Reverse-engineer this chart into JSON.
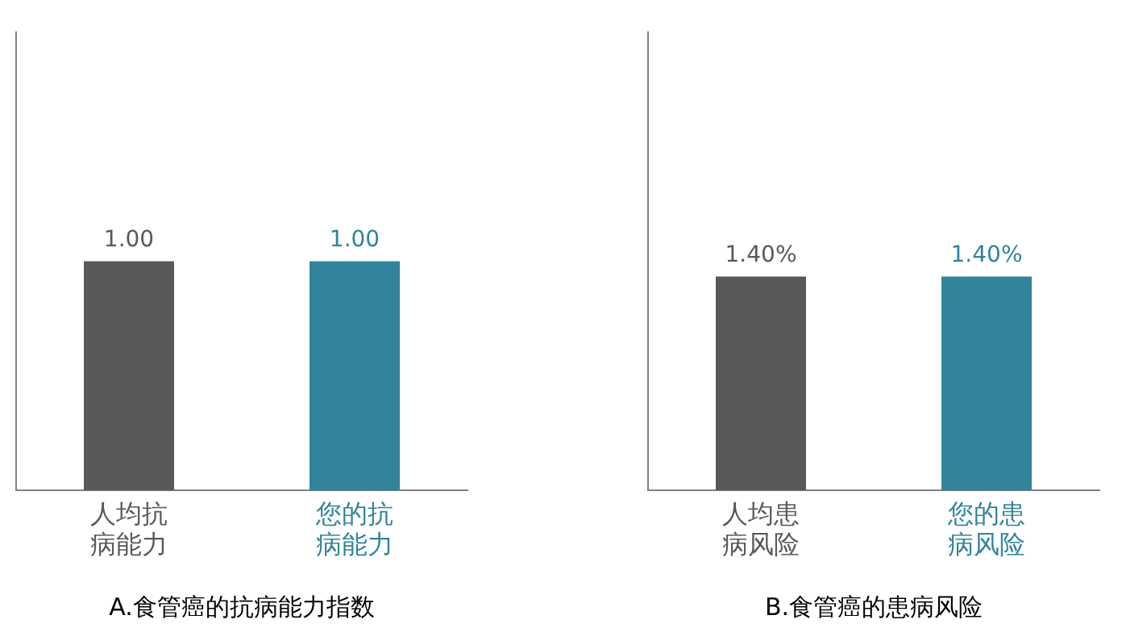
{
  "chart_data": [
    {
      "type": "bar",
      "title": "A.食管癌的抗病能力指数",
      "categories": [
        "人均抗病能力",
        "您的抗病能力"
      ],
      "values": [
        1.0,
        1.0
      ],
      "colors": [
        "#595959",
        "#31849b"
      ],
      "ylim": [
        0,
        2
      ],
      "value_labels": [
        "1.00",
        "1.00"
      ],
      "tick_labels": "x"
    },
    {
      "type": "bar",
      "title": "B.食管癌的患病风险",
      "categories": [
        "人均患病风险",
        "您的患病风险"
      ],
      "values": [
        1.4,
        1.4
      ],
      "colors": [
        "#595959",
        "#31849b"
      ],
      "ylim": [
        0,
        3
      ],
      "value_labels": [
        "1.40%",
        "1.40%"
      ],
      "tick_labels": "x"
    }
  ]
}
